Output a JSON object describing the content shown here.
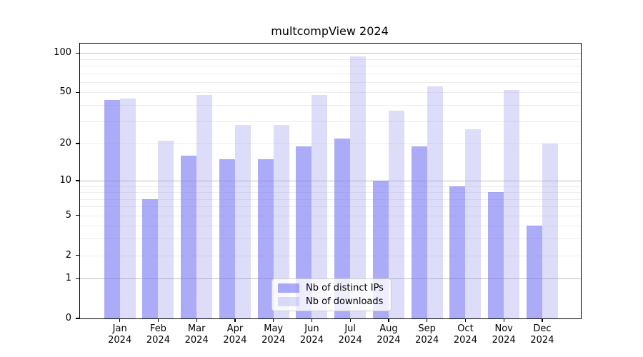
{
  "title": "multcompView 2024",
  "chart_data": {
    "type": "bar",
    "scale": "log1p",
    "title": "multcompView 2024",
    "categories": [
      "Jan",
      "Feb",
      "Mar",
      "Apr",
      "May",
      "Jun",
      "Jul",
      "Aug",
      "Sep",
      "Oct",
      "Nov",
      "Dec"
    ],
    "category_year": "2024",
    "series": [
      {
        "name": "Nb of distinct IPs",
        "color": "rgba(120,120,243,0.62)",
        "values": [
          44,
          7,
          16,
          15,
          15,
          19,
          22,
          10,
          19,
          9,
          8,
          4
        ]
      },
      {
        "name": "Nb of downloads",
        "color": "rgba(150,150,240,0.32)",
        "values": [
          45,
          21,
          48,
          28,
          28,
          48,
          95,
          36,
          56,
          26,
          52,
          20
        ]
      }
    ],
    "y_ticks": [
      0,
      1,
      2,
      5,
      10,
      20,
      50,
      100
    ],
    "grid_major_values": [
      1,
      10,
      100
    ],
    "grid_minor_values": [
      2,
      3,
      4,
      5,
      6,
      7,
      8,
      9,
      20,
      30,
      40,
      50,
      60,
      70,
      80,
      90
    ],
    "ylim": [
      0,
      119
    ],
    "xlabel": "",
    "ylabel": "",
    "legend_position": "lower center",
    "grid": "on"
  },
  "colors": {
    "spine": "#000000",
    "grid_major": "#c0c0c0",
    "grid_minor": "#ededed",
    "background": "#ffffff"
  }
}
